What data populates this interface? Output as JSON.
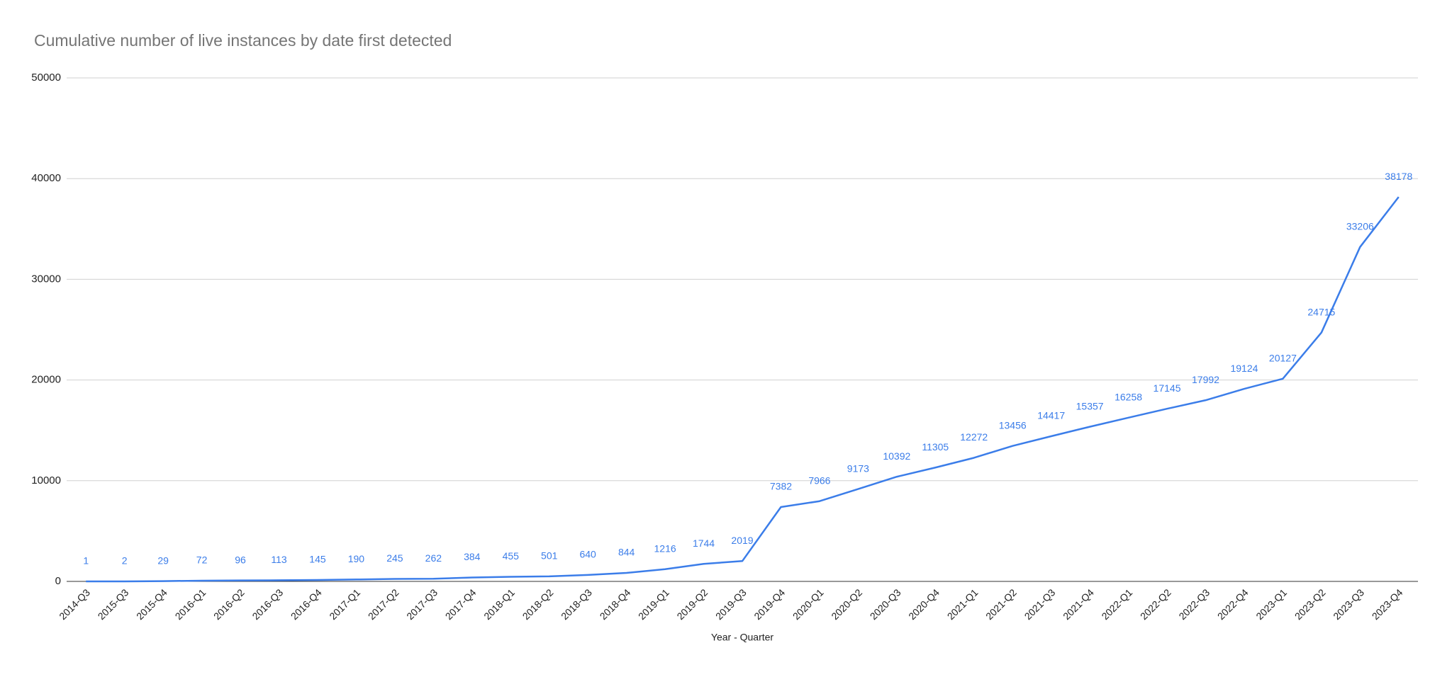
{
  "chart_data": {
    "type": "line",
    "title": "Cumulative number of live instances by date first detected",
    "x_label": "Year - Quarter",
    "categories": [
      "2014-Q3",
      "2015-Q3",
      "2015-Q4",
      "2016-Q1",
      "2016-Q2",
      "2016-Q3",
      "2016-Q4",
      "2017-Q1",
      "2017-Q2",
      "2017-Q3",
      "2017-Q4",
      "2018-Q1",
      "2018-Q2",
      "2018-Q3",
      "2018-Q4",
      "2019-Q1",
      "2019-Q2",
      "2019-Q3",
      "2019-Q4",
      "2020-Q1",
      "2020-Q2",
      "2020-Q3",
      "2020-Q4",
      "2021-Q1",
      "2021-Q2",
      "2021-Q3",
      "2021-Q4",
      "2022-Q1",
      "2022-Q2",
      "2022-Q3",
      "2022-Q4",
      "2023-Q1",
      "2023-Q2",
      "2023-Q3",
      "2023-Q4"
    ],
    "values": [
      1,
      2,
      29,
      72,
      96,
      113,
      145,
      190,
      245,
      262,
      384,
      455,
      501,
      640,
      844,
      1216,
      1744,
      2019,
      7382,
      7966,
      9173,
      10392,
      11305,
      12272,
      13456,
      14417,
      15357,
      16258,
      17145,
      17992,
      19124,
      20127,
      24715,
      33206,
      38178
    ],
    "color": "#3b7de9",
    "ylim": [
      0,
      50000
    ],
    "yticks": [
      0,
      10000,
      20000,
      30000,
      40000,
      50000
    ],
    "grid": true
  }
}
